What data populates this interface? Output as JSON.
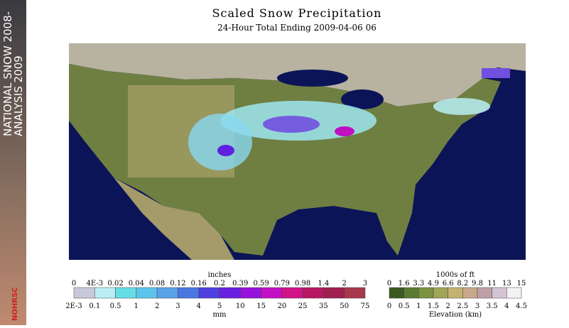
{
  "header": {
    "title": "Scaled Snow Precipitation",
    "subtitle": "24-Hour Total Ending 2009-04-06 06"
  },
  "banner": {
    "line1": "NATIONAL SNOW 2008-",
    "line2": "ANALYSIS 2009",
    "logo": "NOHRSC"
  },
  "precip_legend": {
    "top_unit": "inches",
    "bottom_unit": "mm",
    "top_labels": [
      "0",
      "4E-3",
      "0.02",
      "0.04",
      "0.08",
      "0.12",
      "0.16",
      "0.2",
      "0.39",
      "0.59",
      "0.79",
      "0.98",
      "1.4",
      "2",
      "3"
    ],
    "bottom_labels": [
      "2E-3",
      "0.1",
      "0.5",
      "1",
      "2",
      "3",
      "4",
      "5",
      "10",
      "15",
      "20",
      "25",
      "35",
      "50",
      "75"
    ],
    "colors": [
      "#c8c8d8",
      "#b8eef4",
      "#66dde4",
      "#5cc4ea",
      "#5aa2ea",
      "#4a78e2",
      "#5040e0",
      "#6a20e0",
      "#9612dc",
      "#c410c4",
      "#d01488",
      "#b81862",
      "#a02050",
      "#a8384c"
    ]
  },
  "elevation_legend": {
    "top_unit": "1000s of ft",
    "bottom_unit": "Elevation (km)",
    "top_labels": [
      "0",
      "1.6",
      "3.3",
      "4.9",
      "6.6",
      "8.2",
      "9.8",
      "11",
      "13",
      "15"
    ],
    "bottom_labels": [
      "0",
      "0.5",
      "1",
      "1.5",
      "2",
      "2.5",
      "3",
      "3.5",
      "4",
      "4.5"
    ],
    "colors": [
      "#3a5a22",
      "#5a7a32",
      "#7c9242",
      "#a2a456",
      "#c4b272",
      "#c8a88a",
      "#c0a0a8",
      "#d4c4d4",
      "#f2f2f2"
    ]
  }
}
